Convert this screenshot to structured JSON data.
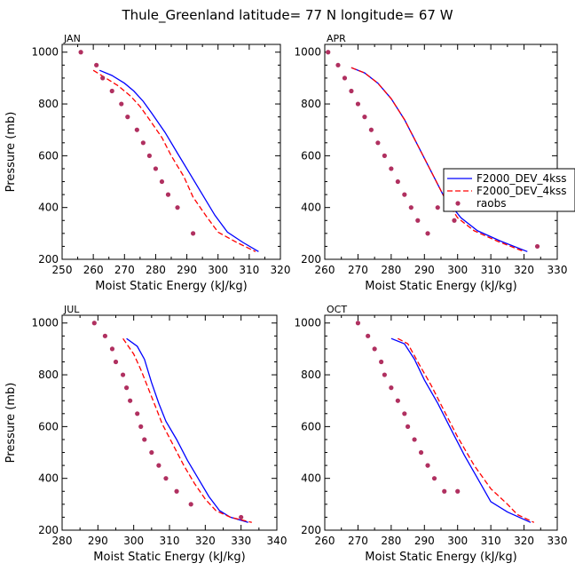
{
  "title": "Thule_Greenland  latitude= 77 N longitude= 67 W",
  "legend": {
    "entries": [
      "F2000_DEV_4kss",
      "F2000_DEV_4kss",
      "raobs"
    ]
  },
  "colors": {
    "model1": "#0000ff",
    "model2": "#ff0000",
    "obs": "#b03060"
  },
  "chart_data": [
    {
      "type": "line",
      "panel": "JAN",
      "xlabel": "Moist Static Energy (kJ/kg)",
      "ylabel": "Pressure (mb)",
      "xlim": [
        250,
        320
      ],
      "ylim": [
        1030,
        200
      ],
      "xticks": [
        250,
        260,
        270,
        280,
        290,
        300,
        310,
        320
      ],
      "yticks": [
        200,
        400,
        600,
        800,
        1000
      ],
      "series": [
        {
          "style": "solid",
          "x": [
            262,
            266,
            270,
            273,
            276,
            279,
            283,
            287,
            291,
            295,
            299,
            303,
            308,
            313
          ],
          "y": [
            930,
            910,
            880,
            850,
            810,
            760,
            690,
            610,
            530,
            450,
            370,
            305,
            265,
            230
          ]
        },
        {
          "style": "dashed",
          "x": [
            260,
            264,
            268,
            272,
            275,
            278,
            282,
            285,
            289,
            292,
            296,
            300,
            306,
            312
          ],
          "y": [
            930,
            900,
            870,
            830,
            790,
            740,
            670,
            600,
            520,
            440,
            370,
            305,
            265,
            230
          ]
        },
        {
          "style": "markers",
          "x": [
            256,
            261,
            263,
            266,
            269,
            271,
            274,
            276,
            278,
            280,
            282,
            284,
            287,
            292
          ],
          "y": [
            1000,
            950,
            900,
            850,
            800,
            750,
            700,
            650,
            600,
            550,
            500,
            450,
            400,
            300
          ]
        }
      ]
    },
    {
      "type": "line",
      "panel": "APR",
      "xlabel": "Moist Static Energy (kJ/kg)",
      "ylabel": "",
      "xlim": [
        260,
        330
      ],
      "ylim": [
        1030,
        200
      ],
      "xticks": [
        260,
        270,
        280,
        290,
        300,
        310,
        320,
        330
      ],
      "yticks": [
        200,
        400,
        600,
        800,
        1000
      ],
      "series": [
        {
          "style": "solid",
          "x": [
            268,
            272,
            276,
            280,
            284,
            288,
            292,
            296,
            301,
            306,
            313,
            321
          ],
          "y": [
            940,
            920,
            880,
            820,
            740,
            640,
            540,
            440,
            360,
            310,
            270,
            230
          ]
        },
        {
          "style": "dashed",
          "x": [
            268,
            272,
            276,
            280,
            284,
            288,
            292,
            296,
            300,
            305,
            312,
            320
          ],
          "y": [
            940,
            920,
            880,
            820,
            740,
            640,
            540,
            440,
            360,
            310,
            270,
            230
          ]
        },
        {
          "style": "markers",
          "x": [
            261,
            264,
            266,
            268,
            270,
            272,
            274,
            276,
            278,
            280,
            282,
            284,
            286,
            288,
            291,
            294,
            299,
            324
          ],
          "y": [
            1000,
            950,
            900,
            850,
            800,
            750,
            700,
            650,
            600,
            550,
            500,
            450,
            400,
            350,
            300,
            400,
            350,
            250
          ]
        }
      ]
    },
    {
      "type": "line",
      "panel": "JUL",
      "xlabel": "Moist Static Energy (kJ/kg)",
      "ylabel": "Pressure (mb)",
      "xlim": [
        280,
        340
      ],
      "ylim": [
        1030,
        200
      ],
      "xticks": [
        280,
        290,
        300,
        310,
        320,
        330,
        340
      ],
      "yticks": [
        200,
        400,
        600,
        800,
        1000
      ],
      "series": [
        {
          "style": "solid",
          "x": [
            298,
            301,
            303,
            305,
            307,
            309,
            312,
            315,
            318,
            321,
            324,
            327,
            332
          ],
          "y": [
            940,
            910,
            860,
            770,
            690,
            620,
            550,
            470,
            400,
            330,
            275,
            250,
            230
          ]
        },
        {
          "style": "dashed",
          "x": [
            297,
            300,
            302,
            304,
            306,
            308,
            311,
            314,
            317,
            320,
            323,
            327,
            333
          ],
          "y": [
            940,
            880,
            820,
            750,
            680,
            610,
            530,
            450,
            380,
            320,
            275,
            250,
            230
          ]
        },
        {
          "style": "markers",
          "x": [
            289,
            292,
            294,
            295,
            297,
            298,
            299,
            301,
            302,
            303,
            305,
            307,
            309,
            312,
            316,
            330
          ],
          "y": [
            1000,
            950,
            900,
            850,
            800,
            750,
            700,
            650,
            600,
            550,
            500,
            450,
            400,
            350,
            300,
            250
          ]
        }
      ]
    },
    {
      "type": "line",
      "panel": "OCT",
      "xlabel": "Moist Static Energy (kJ/kg)",
      "ylabel": "",
      "xlim": [
        260,
        330
      ],
      "ylim": [
        1030,
        200
      ],
      "xticks": [
        260,
        270,
        280,
        290,
        300,
        310,
        320,
        330
      ],
      "yticks": [
        200,
        400,
        600,
        800,
        1000
      ],
      "series": [
        {
          "style": "solid",
          "x": [
            280,
            284,
            287,
            290,
            294,
            298,
            302,
            306,
            310,
            315,
            322
          ],
          "y": [
            940,
            920,
            860,
            780,
            690,
            590,
            490,
            400,
            310,
            270,
            230
          ]
        },
        {
          "style": "dashed",
          "x": [
            282,
            285,
            288,
            292,
            296,
            300,
            305,
            310,
            315,
            318,
            323
          ],
          "y": [
            940,
            920,
            850,
            760,
            660,
            560,
            450,
            360,
            300,
            260,
            230
          ]
        },
        {
          "style": "markers",
          "x": [
            270,
            273,
            275,
            277,
            278,
            280,
            282,
            284,
            285,
            287,
            289,
            291,
            293,
            296,
            300
          ],
          "y": [
            1000,
            950,
            900,
            850,
            800,
            750,
            700,
            650,
            600,
            550,
            500,
            450,
            400,
            350,
            350
          ]
        }
      ]
    }
  ]
}
